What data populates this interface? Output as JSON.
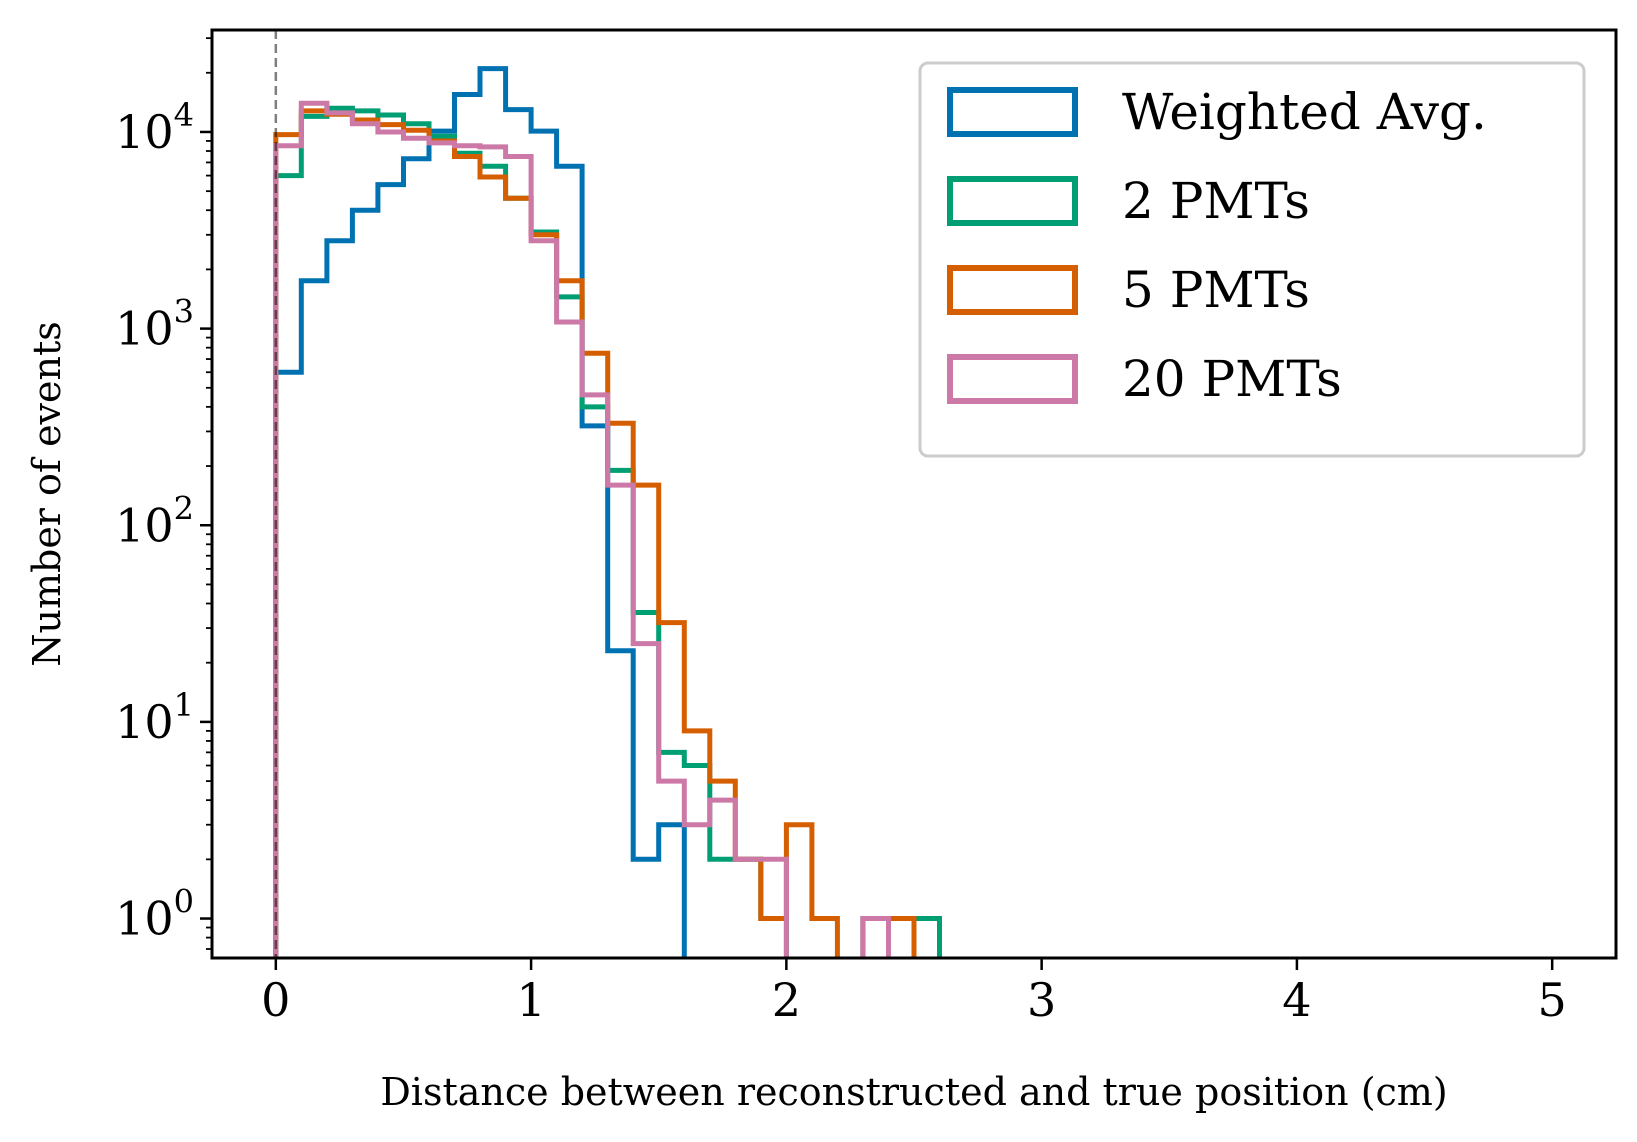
{
  "chart_data": {
    "type": "histogram",
    "xlabel": "Distance between reconstructed and true position (cm)",
    "ylabel": "Number of events",
    "xlim": [
      -0.25,
      5.25
    ],
    "ylim_log": [
      0.63,
      33000
    ],
    "yscale": "log",
    "xticks": [
      0,
      1,
      2,
      3,
      4,
      5
    ],
    "ytick_base": "10",
    "ytick_exponents": [
      "0",
      "1",
      "2",
      "3",
      "4"
    ],
    "legend_placement": "top-right",
    "reference_line_x": 0,
    "bin_width": 0.1,
    "series": [
      {
        "name": "Weighted Avg.",
        "color": "#0072b2",
        "values": [
          600,
          1750,
          2800,
          4000,
          5400,
          7300,
          10100,
          15500,
          21000,
          13000,
          10100,
          6700,
          320,
          23,
          2,
          3,
          0,
          0,
          0,
          0,
          0,
          0,
          0,
          0,
          0,
          0
        ]
      },
      {
        "name": "2 PMTs",
        "color": "#009e73",
        "values": [
          6000,
          12000,
          13200,
          12800,
          12200,
          11000,
          9500,
          7800,
          6700,
          4600,
          3100,
          1450,
          400,
          190,
          36,
          7,
          6,
          2,
          2,
          1,
          0,
          0,
          0,
          1,
          1,
          1
        ]
      },
      {
        "name": "5 PMTs",
        "color": "#d55e00",
        "values": [
          9700,
          12800,
          12300,
          11500,
          10900,
          10200,
          9000,
          7500,
          5900,
          4600,
          3000,
          1750,
          750,
          330,
          160,
          32,
          9,
          5,
          2,
          1,
          3,
          1,
          0,
          1,
          1,
          0
        ]
      },
      {
        "name": "20 PMTs",
        "color": "#cc79a7",
        "values": [
          8500,
          14000,
          12500,
          11000,
          10000,
          9300,
          8800,
          8500,
          8400,
          7500,
          2800,
          1080,
          460,
          160,
          25,
          5,
          3,
          4,
          2,
          2,
          0,
          0,
          0,
          1,
          0,
          0
        ]
      }
    ]
  }
}
